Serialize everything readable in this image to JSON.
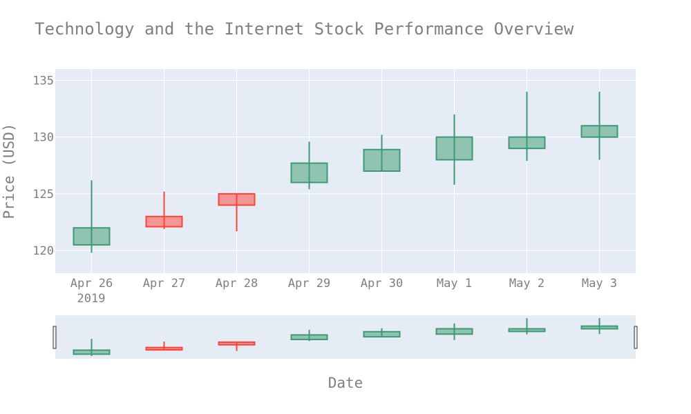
{
  "chart_data": {
    "type": "candlestick",
    "title": "Technology and the Internet Stock Performance Overview",
    "xlabel": "Date",
    "ylabel": "Price (USD)",
    "x_ticks": [
      "Apr 26",
      "Apr 27",
      "Apr 28",
      "Apr 29",
      "Apr 30",
      "May 1",
      "May 2",
      "May 3"
    ],
    "x_year_label": "2019",
    "y_ticks": [
      120,
      125,
      130,
      135
    ],
    "ylim": [
      118,
      136
    ],
    "grid": true,
    "rangeslider": true,
    "colors": {
      "increasing": "#3d9970",
      "increasing_fill": "rgba(61,153,112,0.5)",
      "decreasing": "#ff4136",
      "decreasing_fill": "rgba(255,65,54,0.5)",
      "plot_bg": "#e5ecf6",
      "text": "#7f7f7f"
    },
    "candles": [
      {
        "date": "2019-04-26",
        "open": 120.5,
        "high": 126.2,
        "low": 119.8,
        "close": 122.0
      },
      {
        "date": "2019-04-27",
        "open": 123.0,
        "high": 125.2,
        "low": 121.9,
        "close": 122.1
      },
      {
        "date": "2019-04-28",
        "open": 125.0,
        "high": 125.0,
        "low": 121.7,
        "close": 124.0
      },
      {
        "date": "2019-04-29",
        "open": 126.0,
        "high": 129.6,
        "low": 125.4,
        "close": 127.7
      },
      {
        "date": "2019-04-30",
        "open": 127.0,
        "high": 130.2,
        "low": 127.0,
        "close": 128.9
      },
      {
        "date": "2019-05-01",
        "open": 128.0,
        "high": 132.0,
        "low": 125.8,
        "close": 130.0
      },
      {
        "date": "2019-05-02",
        "open": 129.0,
        "high": 134.0,
        "low": 127.9,
        "close": 130.0
      },
      {
        "date": "2019-05-03",
        "open": 130.0,
        "high": 134.0,
        "low": 128.0,
        "close": 131.0
      }
    ]
  }
}
